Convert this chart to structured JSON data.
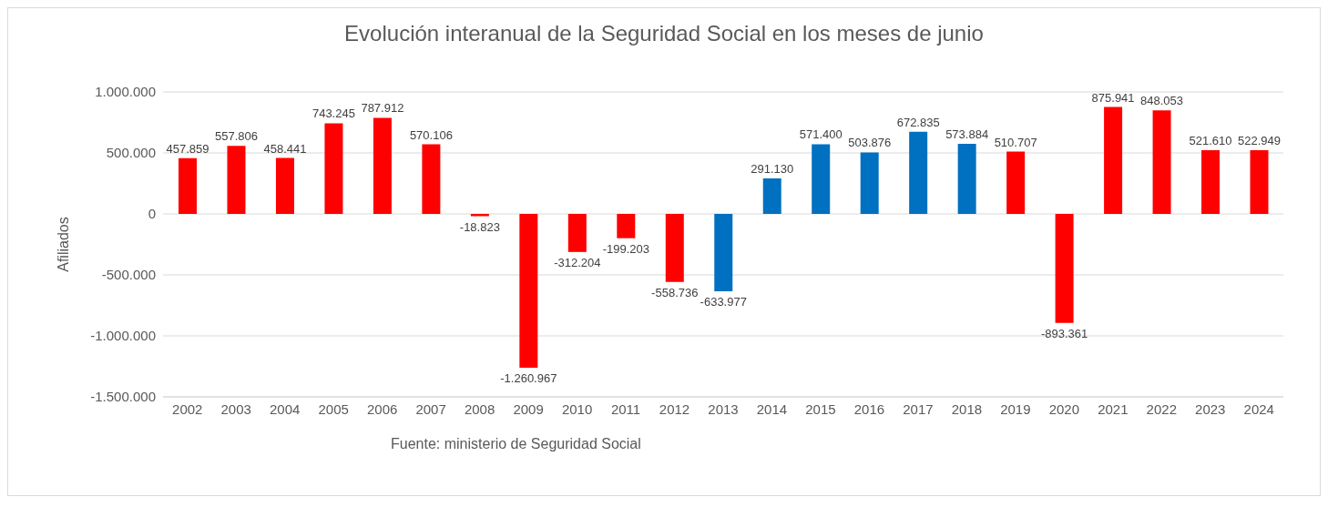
{
  "chart_data": {
    "type": "bar",
    "title": "Evolución interanual de la Seguridad Social en los meses de junio",
    "ylabel": "Afiliados",
    "categories": [
      "2002",
      "2003",
      "2004",
      "2005",
      "2006",
      "2007",
      "2008",
      "2009",
      "2010",
      "2011",
      "2012",
      "2013",
      "2014",
      "2015",
      "2016",
      "2017",
      "2018",
      "2019",
      "2020",
      "2021",
      "2022",
      "2023",
      "2024"
    ],
    "values": [
      457859,
      557806,
      458441,
      743245,
      787912,
      570106,
      -18823,
      -1260967,
      -312204,
      -199203,
      -558736,
      -633977,
      291130,
      571400,
      503876,
      672835,
      573884,
      510707,
      -893361,
      875941,
      848053,
      521610,
      522949
    ],
    "value_labels": [
      "457.859",
      "557.806",
      "458.441",
      "743.245",
      "787.912",
      "570.106",
      "-18.823",
      "-1.260.967",
      "-312.204",
      "-199.203",
      "-558.736",
      "-633.977",
      "291.130",
      "571.400",
      "503.876",
      "672.835",
      "573.884",
      "510.707",
      "-893.361",
      "875.941",
      "848.053",
      "521.610",
      "522.949"
    ],
    "colors": [
      "#ff0000",
      "#ff0000",
      "#ff0000",
      "#ff0000",
      "#ff0000",
      "#ff0000",
      "#ff0000",
      "#ff0000",
      "#ff0000",
      "#ff0000",
      "#ff0000",
      "#0070c0",
      "#0070c0",
      "#0070c0",
      "#0070c0",
      "#0070c0",
      "#0070c0",
      "#ff0000",
      "#ff0000",
      "#ff0000",
      "#ff0000",
      "#ff0000",
      "#ff0000"
    ],
    "ylim": [
      -1500000,
      1000000
    ],
    "yticks": [
      {
        "value": -1500000,
        "label": "-1.500.000"
      },
      {
        "value": -1000000,
        "label": "-1.000.000"
      },
      {
        "value": -500000,
        "label": "-500.000"
      },
      0,
      {
        "value": 500000,
        "label": "500.000"
      },
      {
        "value": 1000000,
        "label": "1.000.000"
      }
    ],
    "grid": "y",
    "legend": false,
    "annotations": [
      "Fuente: ministerio de Seguridad Social"
    ]
  }
}
